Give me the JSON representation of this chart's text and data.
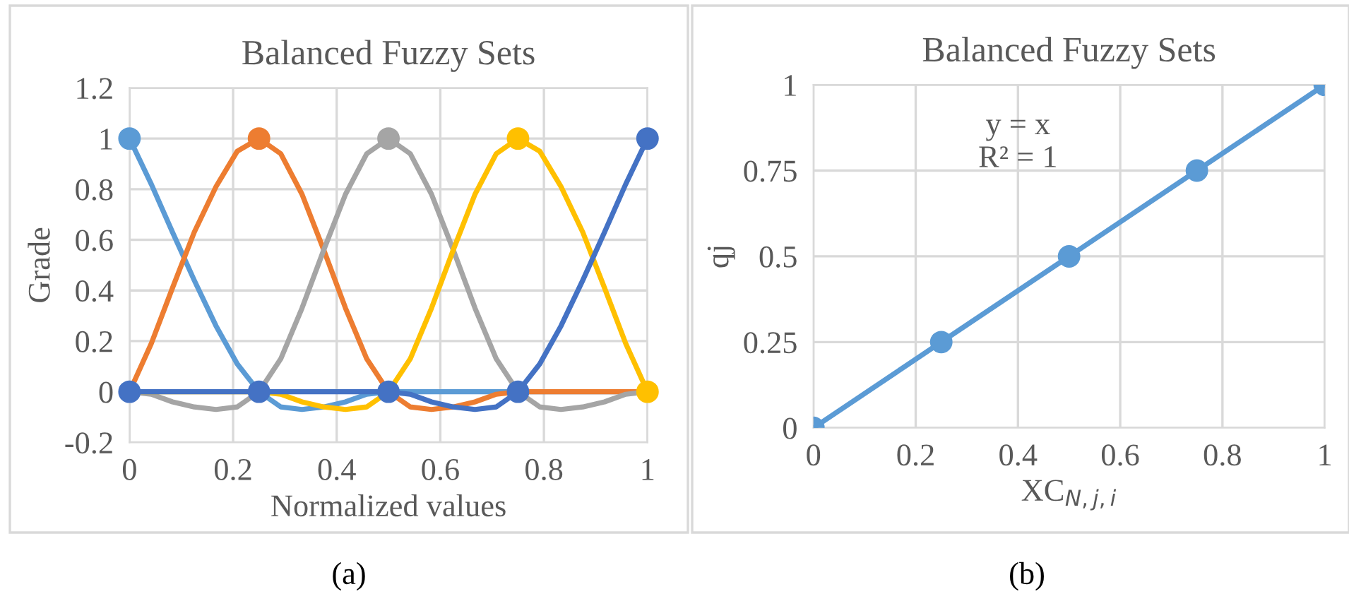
{
  "chart_data": [
    {
      "type": "line",
      "title": "Balanced Fuzzy Sets",
      "xlabel": "Normalized values",
      "ylabel": "Grade",
      "series": [
        {
          "color": "#5b9bd5",
          "x": [
            0,
            0.042,
            0.083,
            0.125,
            0.167,
            0.208,
            0.25,
            0.292,
            0.333,
            0.375,
            0.417,
            0.458,
            0.5,
            1
          ],
          "values": [
            1,
            0.82,
            0.63,
            0.44,
            0.26,
            0.11,
            0,
            -0.06,
            -0.07,
            -0.06,
            -0.04,
            -0.01,
            0,
            0
          ]
        },
        {
          "color": "#ed7d31",
          "x": [
            0,
            0.042,
            0.083,
            0.125,
            0.167,
            0.208,
            0.25,
            0.292,
            0.333,
            0.375,
            0.417,
            0.458,
            0.5,
            0.542,
            0.583,
            0.625,
            0.667,
            0.708,
            0.75,
            1
          ],
          "values": [
            0,
            0.19,
            0.41,
            0.63,
            0.81,
            0.95,
            1,
            0.94,
            0.78,
            0.56,
            0.33,
            0.13,
            0,
            -0.06,
            -0.07,
            -0.06,
            -0.04,
            -0.01,
            0,
            0
          ]
        },
        {
          "color": "#a5a5a5",
          "x": [
            0,
            0.042,
            0.083,
            0.125,
            0.167,
            0.208,
            0.25,
            0.292,
            0.333,
            0.375,
            0.417,
            0.458,
            0.5,
            0.542,
            0.583,
            0.625,
            0.667,
            0.708,
            0.75,
            0.792,
            0.833,
            0.875,
            0.917,
            0.958,
            1
          ],
          "values": [
            0,
            -0.01,
            -0.04,
            -0.06,
            -0.07,
            -0.06,
            0,
            0.13,
            0.33,
            0.56,
            0.78,
            0.94,
            1,
            0.94,
            0.78,
            0.56,
            0.33,
            0.13,
            0,
            -0.06,
            -0.07,
            -0.06,
            -0.04,
            -0.01,
            0
          ]
        },
        {
          "color": "#ffc000",
          "x": [
            0,
            0.25,
            0.292,
            0.333,
            0.375,
            0.417,
            0.458,
            0.5,
            0.542,
            0.583,
            0.625,
            0.667,
            0.708,
            0.75,
            0.792,
            0.833,
            0.875,
            0.917,
            0.958,
            1
          ],
          "values": [
            0,
            0,
            -0.01,
            -0.04,
            -0.06,
            -0.07,
            -0.06,
            0,
            0.13,
            0.33,
            0.56,
            0.78,
            0.94,
            1,
            0.95,
            0.81,
            0.63,
            0.41,
            0.19,
            0
          ]
        },
        {
          "color": "#4472c4",
          "x": [
            0,
            0.5,
            0.542,
            0.583,
            0.625,
            0.667,
            0.708,
            0.75,
            0.792,
            0.833,
            0.875,
            0.917,
            0.958,
            1
          ],
          "values": [
            0,
            0,
            -0.01,
            -0.04,
            -0.06,
            -0.07,
            -0.06,
            0,
            0.11,
            0.26,
            0.44,
            0.63,
            0.82,
            1
          ]
        },
        {
          "type": "scatter",
          "color": "#5b9bd5",
          "x": [
            0
          ],
          "values": [
            1
          ]
        },
        {
          "type": "scatter",
          "color": "#ed7d31",
          "x": [
            0.25
          ],
          "values": [
            1
          ]
        },
        {
          "type": "scatter",
          "color": "#a5a5a5",
          "x": [
            0.5
          ],
          "values": [
            1
          ]
        },
        {
          "type": "scatter",
          "color": "#ffc000",
          "x": [
            0.75,
            1
          ],
          "values": [
            1,
            0
          ]
        },
        {
          "type": "scatter",
          "color": "#4472c4",
          "x": [
            0,
            0.25,
            0.5,
            0.75,
            1
          ],
          "values": [
            0,
            0,
            0,
            0,
            1
          ]
        }
      ],
      "xlim": [
        0,
        1
      ],
      "xticks": [
        0,
        0.2,
        0.4,
        0.6,
        0.8,
        1
      ],
      "ylim": [
        -0.2,
        1.2
      ],
      "yticks": [
        -0.2,
        0,
        0.2,
        0.4,
        0.6,
        0.8,
        1,
        1.2
      ],
      "grid": true,
      "line_style": "solid",
      "legend": false,
      "annotations": [
        "(a)"
      ]
    },
    {
      "type": "line",
      "title": "Balanced Fuzzy Sets",
      "xlabel": "XC$_{N,j,i}$",
      "ylabel": "qj",
      "x": [
        0,
        0.25,
        0.5,
        0.75,
        1
      ],
      "series": [
        {
          "color": "#5b9bd5",
          "values": [
            0,
            0.25,
            0.5,
            0.75,
            1
          ]
        }
      ],
      "xlim": [
        0,
        1
      ],
      "xticks": [
        0,
        0.2,
        0.4,
        0.6,
        0.8,
        1
      ],
      "ylim": [
        0,
        1
      ],
      "yticks": [
        0,
        0.25,
        0.5,
        0.75,
        1
      ],
      "grid": true,
      "marker": "circle",
      "line_style": "solid",
      "legend": false,
      "annotations": [
        "y = x\nR² = 1",
        "(b)"
      ]
    }
  ]
}
